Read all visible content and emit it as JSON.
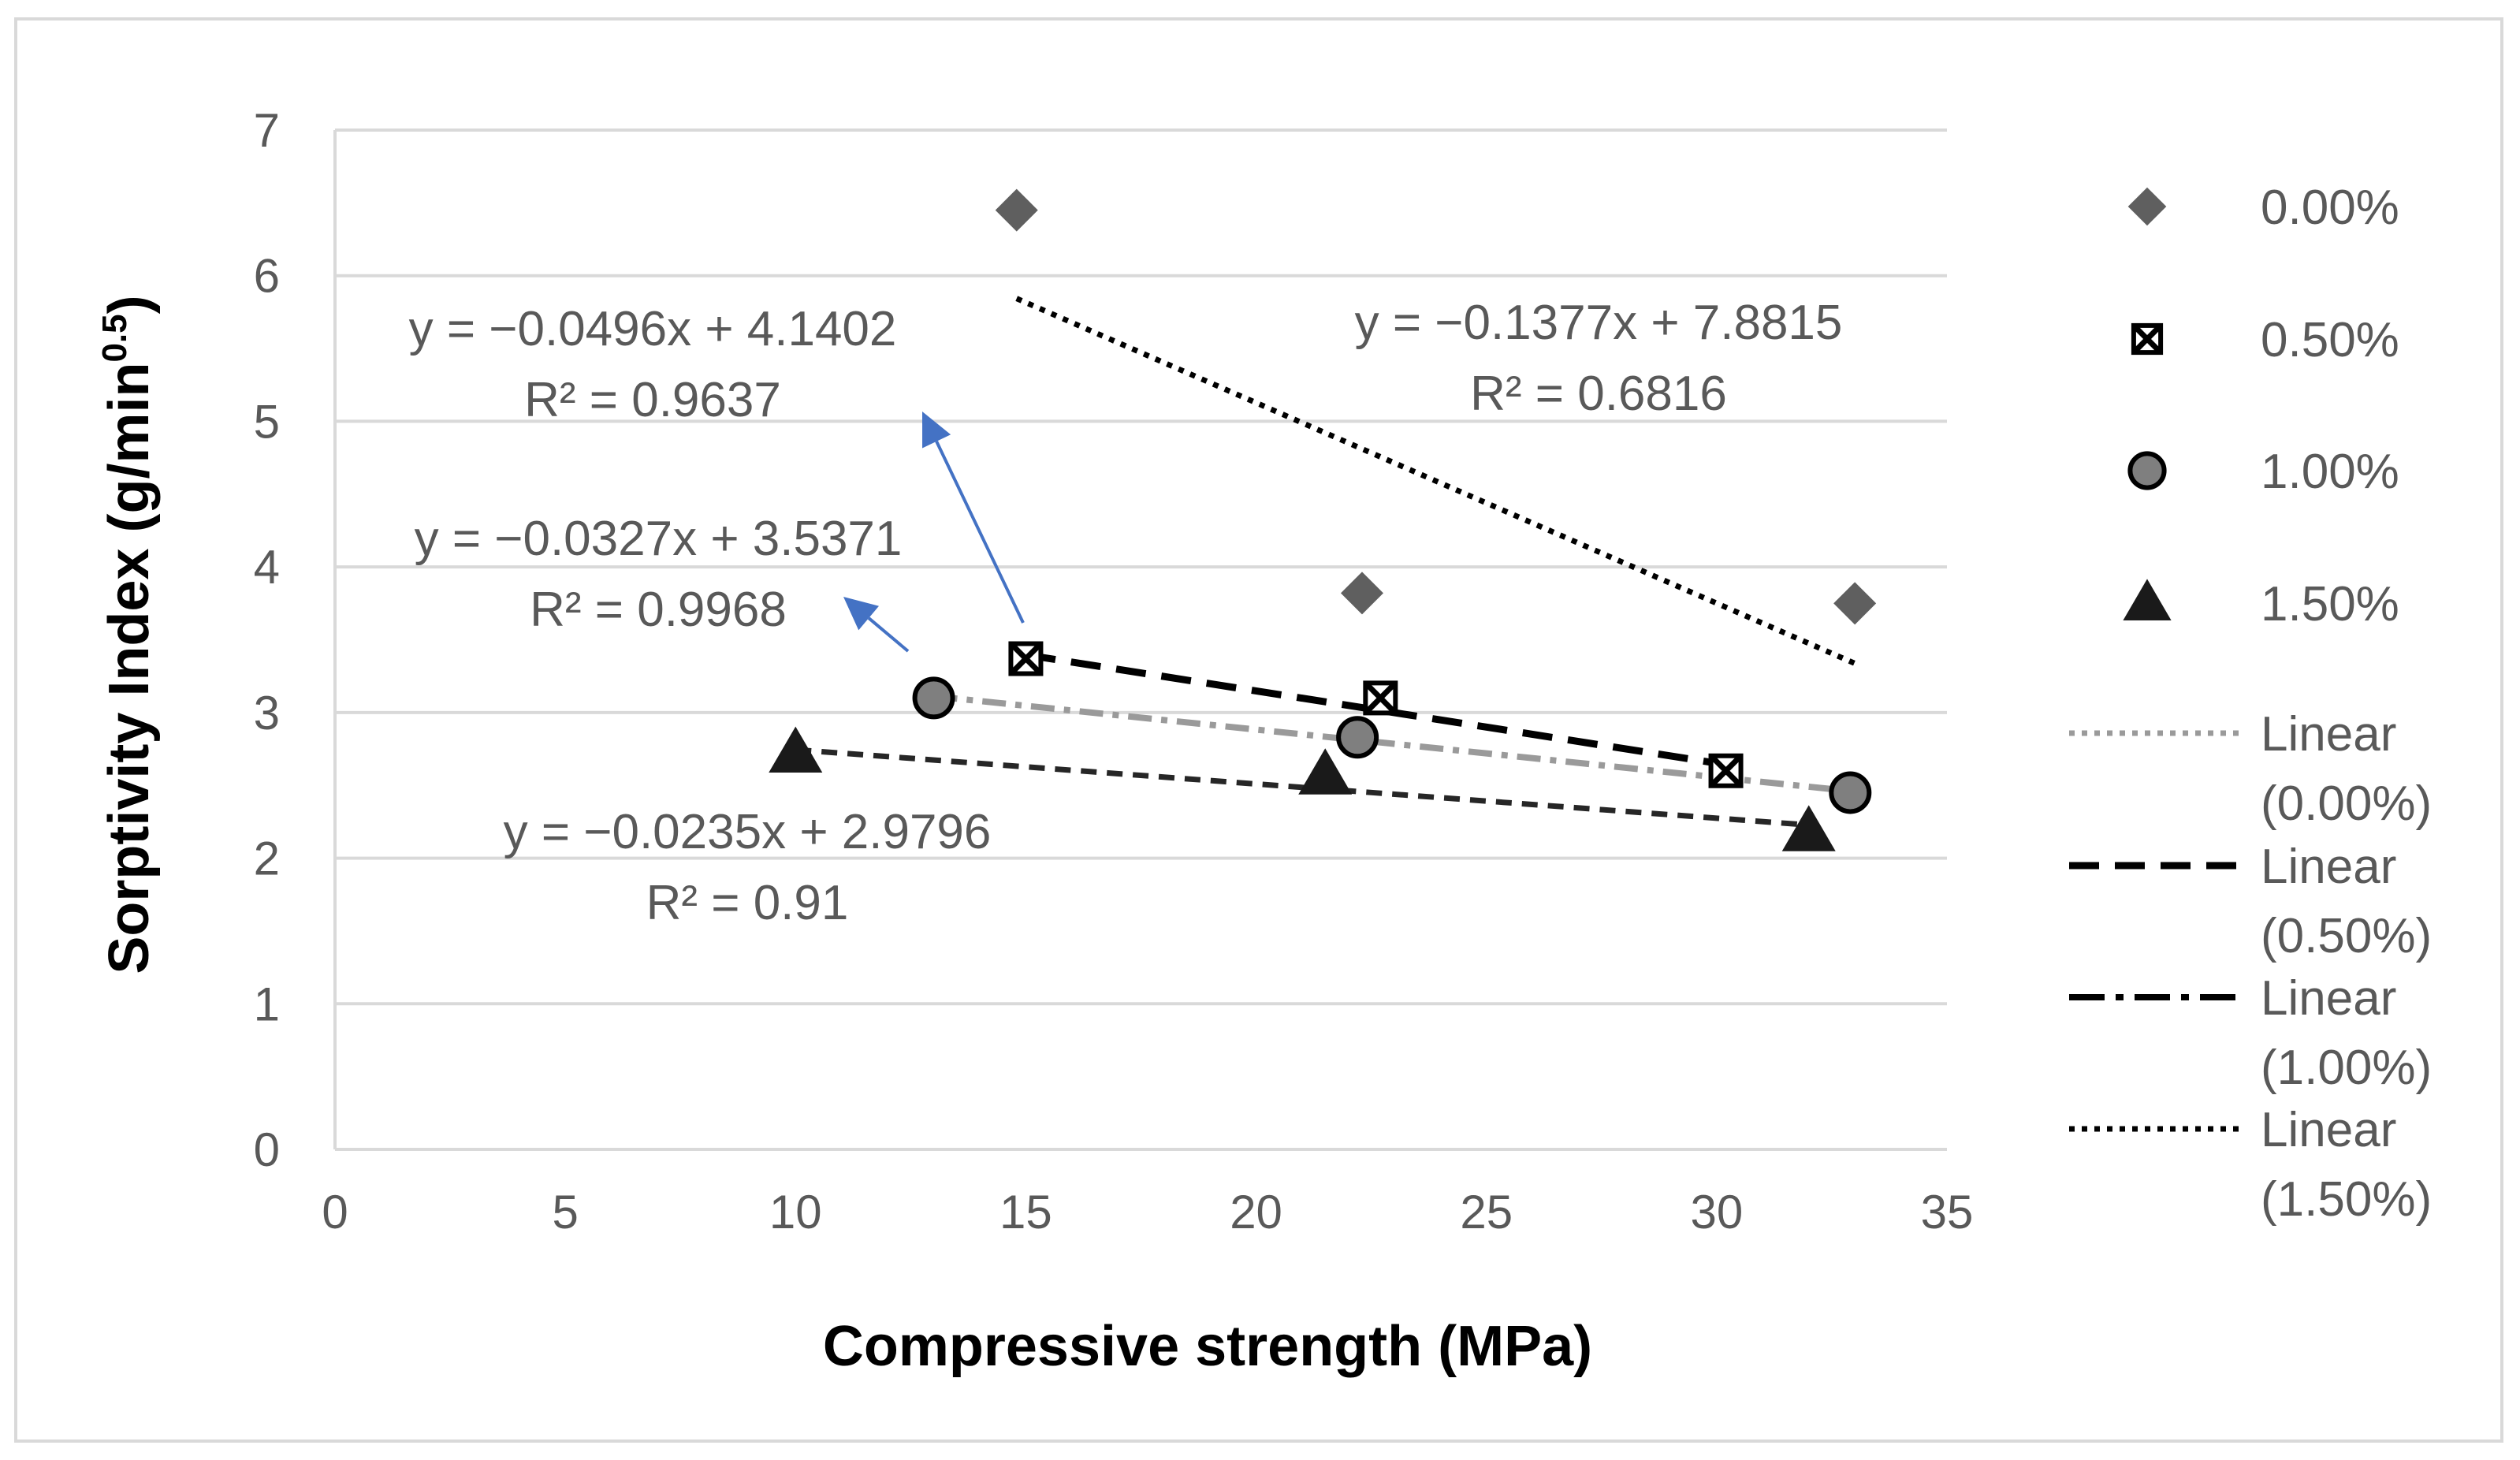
{
  "chart_data": {
    "type": "scatter",
    "xlabel": "Compressive strength (MPa)",
    "ylabel_main": "Sorptivity Index (g/min",
    "ylabel_sup": "0.5",
    "ylabel_end": ")",
    "xlim": [
      0,
      35
    ],
    "ylim": [
      0,
      7
    ],
    "xticks": [
      "0",
      "5",
      "10",
      "15",
      "20",
      "25",
      "30",
      "35"
    ],
    "yticks": [
      "0",
      "1",
      "2",
      "3",
      "4",
      "5",
      "6",
      "7"
    ],
    "grid": true,
    "legend_position": "right",
    "series": [
      {
        "name": "0.00%",
        "marker": "diamond",
        "color": "#5f5f5f",
        "x": [
          14.8,
          22.3,
          33.0
        ],
        "y": [
          6.45,
          3.82,
          3.75
        ]
      },
      {
        "name": "0.50%",
        "marker": "x-square",
        "color": "#000000",
        "x": [
          15.0,
          22.7,
          30.2
        ],
        "y": [
          3.37,
          3.1,
          2.6
        ]
      },
      {
        "name": "1.00%",
        "marker": "circle",
        "color": "#7f7f7f",
        "x": [
          13.0,
          22.2,
          32.9
        ],
        "y": [
          3.1,
          2.83,
          2.45
        ]
      },
      {
        "name": "1.50%",
        "marker": "triangle",
        "color": "#1a1a1a",
        "x": [
          10.0,
          21.5,
          32.0
        ],
        "y": [
          2.72,
          2.57,
          2.18
        ]
      }
    ],
    "trendlines": [
      {
        "name": "Linear (0.00%)",
        "slope": -0.1377,
        "intercept": 7.8815,
        "x_range": [
          14.8,
          33.0
        ],
        "color": "#000000",
        "style": "dotted-heavy"
      },
      {
        "name": "Linear (0.50%)",
        "slope": -0.0496,
        "intercept": 4.1402,
        "x_range": [
          15.0,
          30.2
        ],
        "color": "#000000",
        "style": "dashed"
      },
      {
        "name": "Linear (1.00%)",
        "slope": -0.0327,
        "intercept": 3.5371,
        "x_range": [
          13.0,
          32.9
        ],
        "color": "#000000",
        "style": "dashdot"
      },
      {
        "name": "Linear (1.50%)",
        "slope": -0.0235,
        "intercept": 2.9796,
        "x_range": [
          10.0,
          32.0
        ],
        "color": "#000000",
        "style": "dashed-small"
      }
    ],
    "legend": [
      {
        "label": "0.00%",
        "kind": "diamond"
      },
      {
        "label": "0.50%",
        "kind": "x-square"
      },
      {
        "label": "1.00%",
        "kind": "circle"
      },
      {
        "label": "1.50%",
        "kind": "triangle"
      },
      {
        "label": "Linear",
        "label2": "(0.00%)",
        "kind": "dotted-gray"
      },
      {
        "label": "Linear",
        "label2": "(0.50%)",
        "kind": "dashed"
      },
      {
        "label": "Linear",
        "label2": "(1.00%)",
        "kind": "dashdot"
      },
      {
        "label": "Linear",
        "label2": "(1.50%)",
        "kind": "dotted-black"
      }
    ],
    "annotations": [
      {
        "line1": "y = −0.0496x + 4.1402",
        "line2": "R² = 0.9637"
      },
      {
        "line1": "y = −0.1377x + 7.8815",
        "line2": "R² = 0.6816"
      },
      {
        "line1": "y = −0.0327x + 3.5371",
        "line2": "R² = 0.9968"
      },
      {
        "line1": "y = −0.0235x + 2.9796",
        "line2": "R² = 0.91"
      }
    ],
    "arrow_color": "#4472c4"
  }
}
